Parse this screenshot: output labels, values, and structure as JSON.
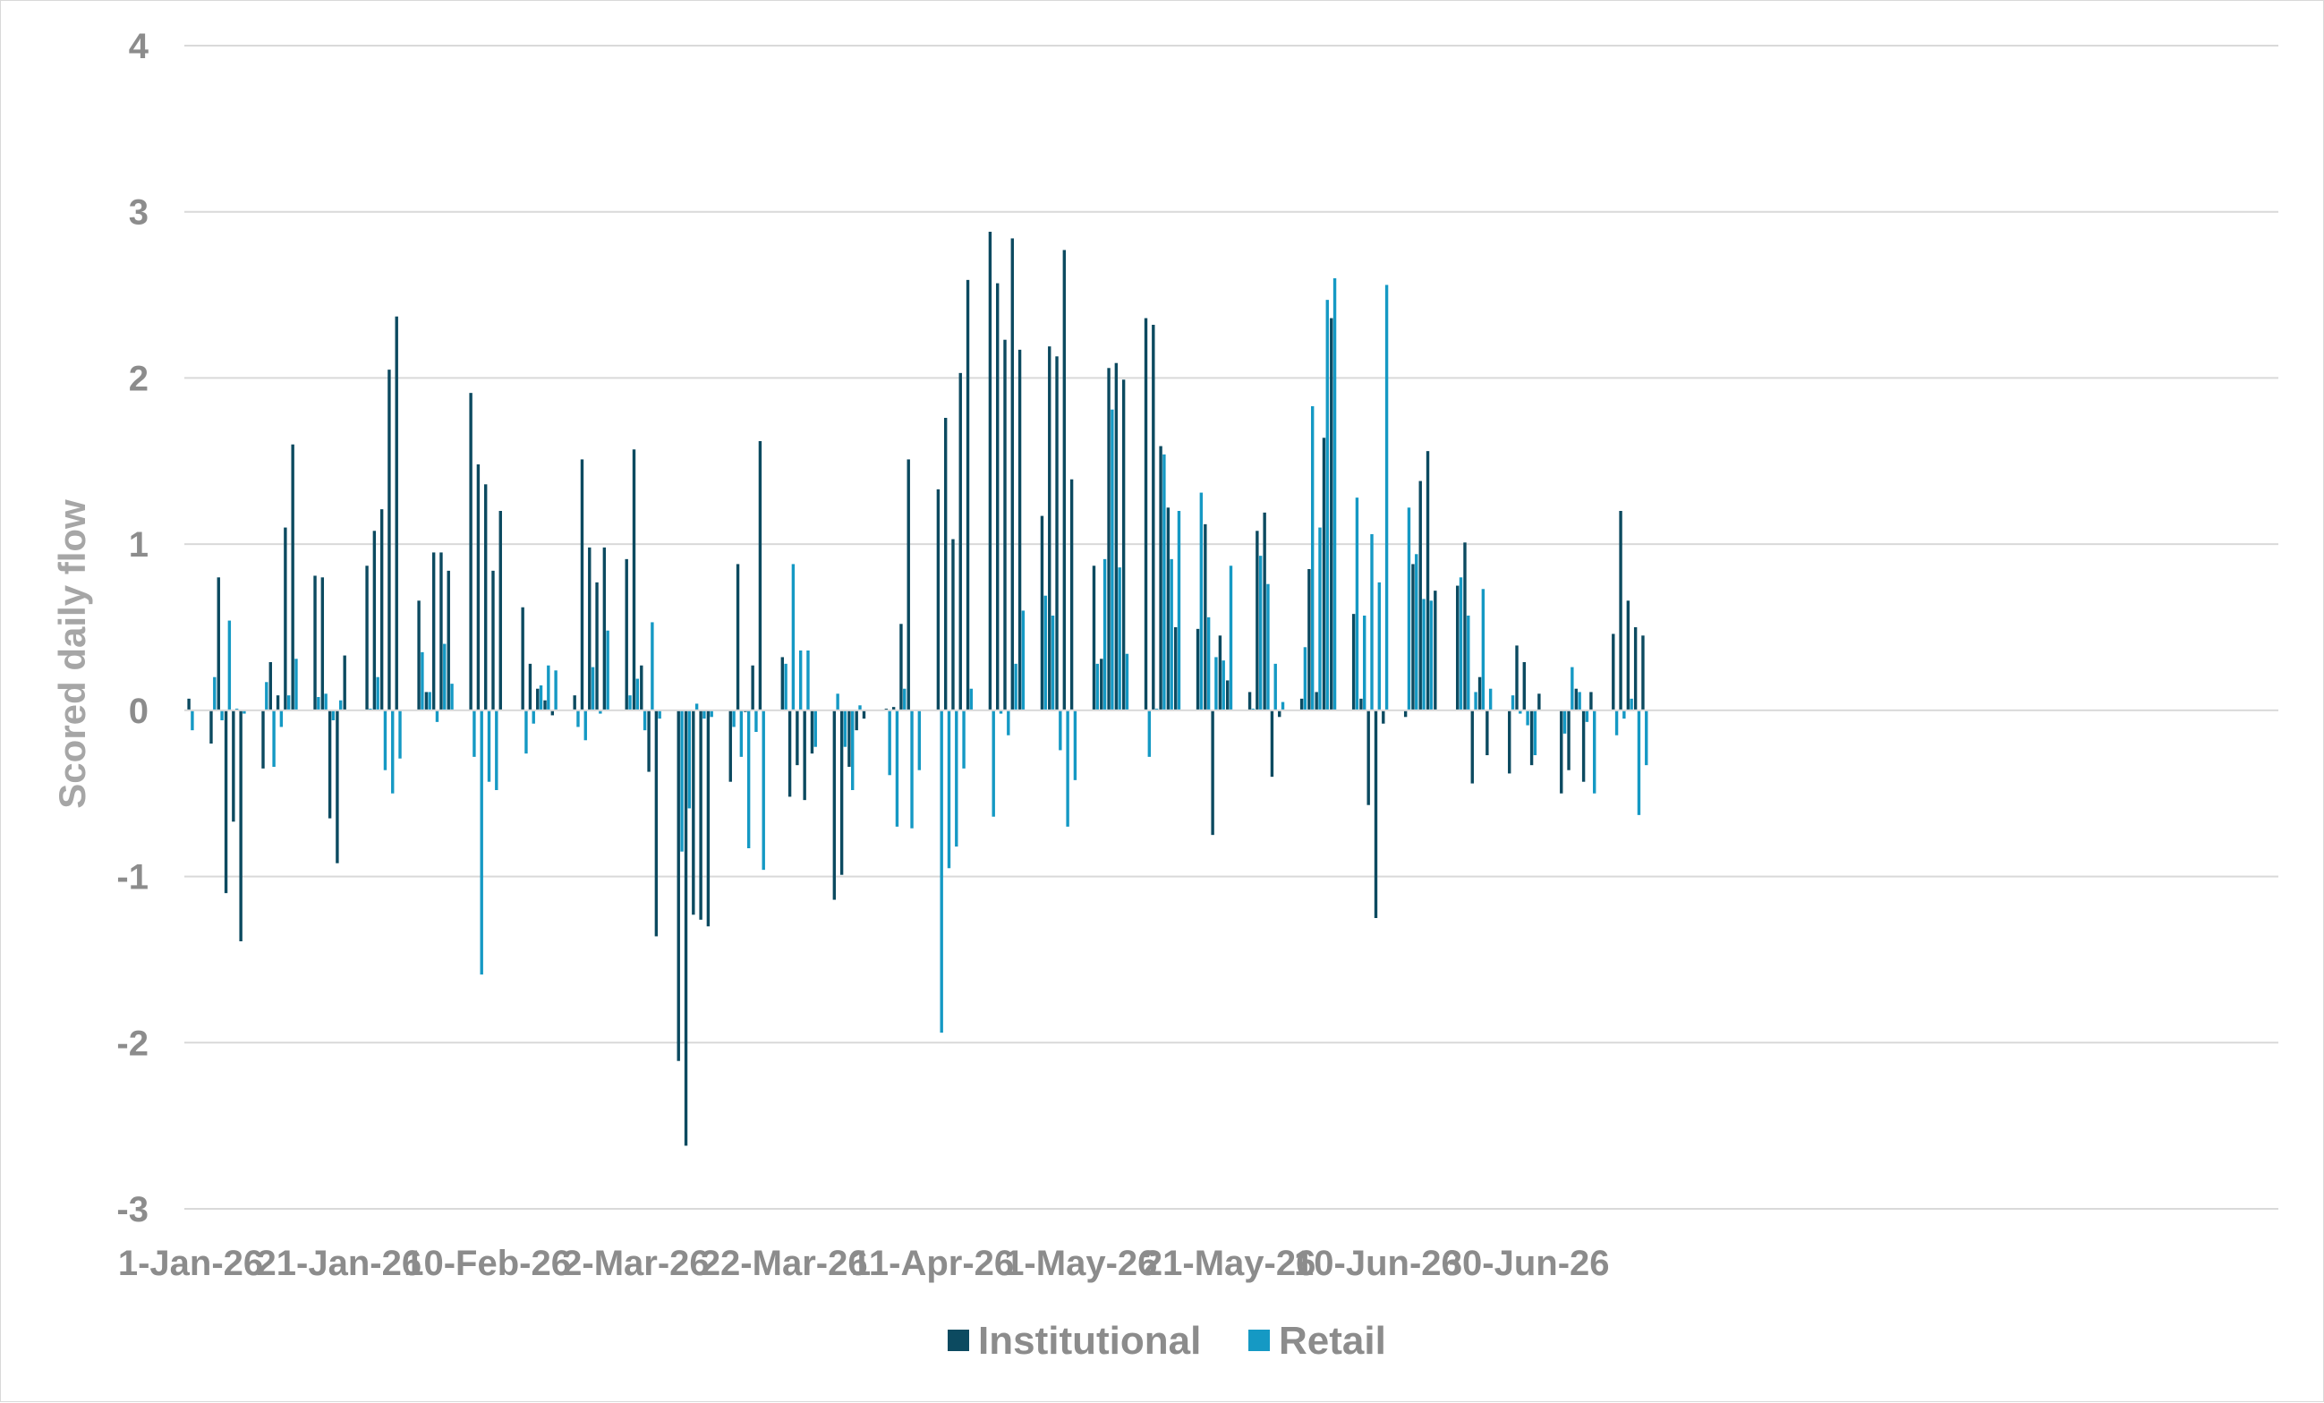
{
  "chart_data": {
    "type": "bar",
    "title": "",
    "xlabel": "",
    "ylabel": "Scored daily flow",
    "ylim": [
      -3,
      4
    ],
    "yticks": [
      "4",
      "3",
      "2",
      "1",
      "0",
      "-1",
      "-2",
      "-3"
    ],
    "xtick_labels": [
      "1-Jan-26",
      "21-Jan-26",
      "10-Feb-26",
      "2-Mar-26",
      "22-Mar-26",
      "11-Apr-26",
      "1-May-26",
      "21-May-26",
      "10-Jun-26",
      "30-Jun-26"
    ],
    "grid": true,
    "legend_position": "bottom",
    "start_date": "2026-01-01",
    "end_date": "2026-07-17",
    "colors": {
      "Institutional": "#0c4a60",
      "Retail": "#1599c4"
    },
    "series": [
      {
        "name": "Institutional",
        "values": [
          0.07,
          0,
          0,
          -0.2,
          0.8,
          -1.1,
          -0.67,
          -1.39,
          0,
          0,
          -0.35,
          0.29,
          0.09,
          1.1,
          1.6,
          0,
          0,
          0.81,
          0.8,
          -0.65,
          -0.92,
          0.33,
          0,
          0,
          0.87,
          1.08,
          1.21,
          2.05,
          2.37,
          0,
          0,
          0.66,
          0.11,
          0.95,
          0.95,
          0.84,
          0,
          0,
          1.91,
          1.48,
          1.36,
          0.84,
          1.2,
          0,
          0,
          0.62,
          0.28,
          0.13,
          0.06,
          -0.03,
          0,
          0,
          0.09,
          1.51,
          0.98,
          0.77,
          0.98,
          0,
          0,
          0.91,
          1.57,
          0.27,
          -0.37,
          -1.36,
          0,
          0,
          -2.11,
          -2.62,
          -1.23,
          -1.26,
          -1.3,
          0,
          0,
          -0.43,
          0.88,
          -0.01,
          0.27,
          1.62,
          0,
          0,
          0.32,
          -0.52,
          -0.33,
          -0.54,
          -0.26,
          0,
          0,
          -1.14,
          -0.99,
          -0.34,
          -0.12,
          -0.05,
          0,
          0,
          0.01,
          0.02,
          0.52,
          1.51,
          0,
          0,
          0,
          1.33,
          1.76,
          1.03,
          2.03,
          2.59,
          0,
          0,
          2.88,
          2.57,
          2.23,
          2.84,
          2.17,
          0,
          0,
          1.17,
          2.19,
          2.13,
          2.77,
          1.39,
          0,
          0,
          0.87,
          0.31,
          2.06,
          2.09,
          1.99,
          0,
          0,
          2.36,
          2.32,
          1.59,
          1.22,
          0.5,
          0,
          0,
          0.49,
          1.12,
          -0.75,
          0.45,
          0.18,
          0,
          0,
          0.11,
          1.08,
          1.19,
          -0.4,
          -0.04,
          0,
          0,
          0.07,
          0.85,
          0.11,
          1.64,
          2.36,
          0,
          0,
          0.58,
          0.07,
          -0.57,
          -1.25,
          -0.08,
          0,
          0,
          -0.04,
          0.88,
          1.38,
          1.56,
          0.72,
          0,
          0,
          0.75,
          1.01,
          -0.44,
          0.2,
          -0.27,
          0,
          0,
          -0.38,
          0.39,
          0.29,
          -0.33,
          0.1,
          0,
          0,
          -0.5,
          -0.36,
          0.13,
          -0.43,
          0.11,
          0,
          0,
          0.46,
          1.2,
          0.66,
          0.5,
          0.45
        ],
        "retail": false
      },
      {
        "name": "Retail",
        "values": [
          -0.12,
          0,
          0,
          0.2,
          -0.06,
          0.54,
          0.01,
          -0.02,
          0,
          0,
          0.17,
          -0.34,
          -0.1,
          0.09,
          0.31,
          0,
          0,
          0.08,
          0.1,
          -0.06,
          0.06,
          0,
          0,
          0,
          0.01,
          0.2,
          -0.36,
          -0.5,
          -0.29,
          0,
          0,
          0.35,
          0.11,
          -0.07,
          0.4,
          0.16,
          0,
          0,
          -0.28,
          -1.59,
          -0.43,
          -0.48,
          0,
          0,
          0,
          -0.26,
          -0.08,
          0.15,
          0.27,
          0.24,
          0,
          0,
          -0.1,
          -0.18,
          0.26,
          -0.02,
          0.48,
          0,
          0,
          0.09,
          0.19,
          -0.12,
          0.53,
          -0.05,
          0,
          0,
          -0.85,
          -0.59,
          0.04,
          -0.05,
          -0.04,
          0,
          0,
          -0.1,
          -0.28,
          -0.83,
          -0.13,
          -0.96,
          0,
          0,
          0.28,
          0.88,
          0.36,
          0.36,
          -0.22,
          0,
          0,
          0.1,
          -0.22,
          -0.48,
          0.03,
          0,
          0,
          0,
          -0.39,
          -0.7,
          0.13,
          -0.71,
          -0.36,
          0,
          0,
          -1.94,
          -0.95,
          -0.82,
          -0.35,
          0.13,
          0,
          0,
          -0.64,
          -0.02,
          -0.15,
          0.28,
          0.6,
          0,
          0,
          0.69,
          0.57,
          -0.24,
          -0.7,
          -0.42,
          0,
          0,
          0.28,
          0.91,
          1.81,
          0.86,
          0.34,
          0,
          0,
          -0.28,
          0.01,
          1.54,
          0.91,
          1.2,
          0,
          0,
          1.31,
          0.56,
          0.32,
          0.3,
          0.87,
          0,
          0,
          0.01,
          0.93,
          0.76,
          0.28,
          0.05,
          0,
          0,
          0.38,
          1.83,
          1.1,
          2.47,
          2.6,
          0,
          0,
          1.28,
          0.57,
          1.06,
          0.77,
          2.56,
          0,
          0,
          1.22,
          0.94,
          0.67,
          0.66,
          0,
          0,
          0,
          0.8,
          0.57,
          0.11,
          0.73,
          0.13,
          0,
          0,
          0.09,
          -0.02,
          -0.09,
          -0.27,
          0,
          0,
          0,
          -0.14,
          0.26,
          0.11,
          -0.07,
          -0.5,
          0,
          0,
          -0.15,
          -0.05,
          0.07,
          -0.63,
          -0.33
        ]
      }
    ]
  }
}
